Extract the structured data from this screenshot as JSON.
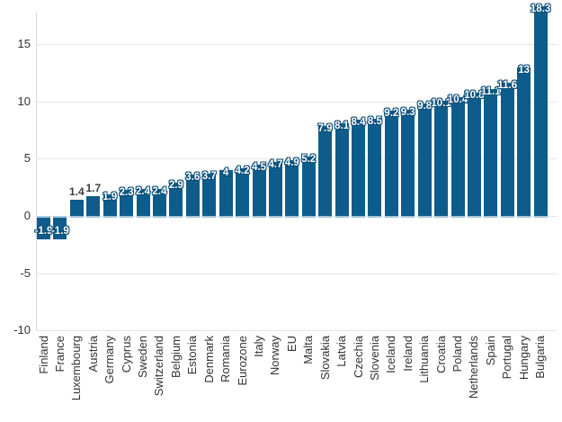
{
  "chart_data": {
    "type": "bar",
    "title": "",
    "xlabel": "",
    "ylabel": "",
    "categories": [
      "Finland",
      "France",
      "Luxembourg",
      "Austria",
      "Germany",
      "Cyprus",
      "Sweden",
      "Switzerland",
      "Belgium",
      "Estonia",
      "Denmark",
      "Romania",
      "Eurozone",
      "Italy",
      "Norway",
      "EU",
      "Malta",
      "Slovakia",
      "Latvia",
      "Czechia",
      "Slovenia",
      "Iceland",
      "Ireland",
      "Lithuania",
      "Croatia",
      "Poland",
      "Netherlands",
      "Spain",
      "Portugal",
      "Hungary",
      "Bulgaria"
    ],
    "values": [
      -1.9,
      -1.9,
      1.4,
      1.7,
      1.9,
      2.3,
      2.4,
      2.4,
      2.9,
      3.6,
      3.7,
      4,
      4.2,
      4.5,
      4.7,
      4.9,
      5.2,
      7.9,
      8.1,
      8.4,
      8.5,
      9.2,
      9.3,
      9.8,
      10.1,
      10.4,
      10.8,
      11.1,
      11.6,
      13,
      18.3
    ],
    "yticks": [
      15,
      10,
      5,
      0,
      -5,
      -10
    ],
    "ylim": [
      -10,
      18.5
    ],
    "grid": "horizontal",
    "legend": "none",
    "colors": {
      "bar": "#0e5c8c",
      "bar_baseline_edge": "#a3c6dc",
      "value_label_inside": "#ffffff",
      "value_label_halo": "#0a4d78",
      "value_label_outside": "#3d3d3d",
      "axis_text": "#333333",
      "gridline": "#e4e4e4",
      "axis_line": "#d9d9d9"
    }
  }
}
